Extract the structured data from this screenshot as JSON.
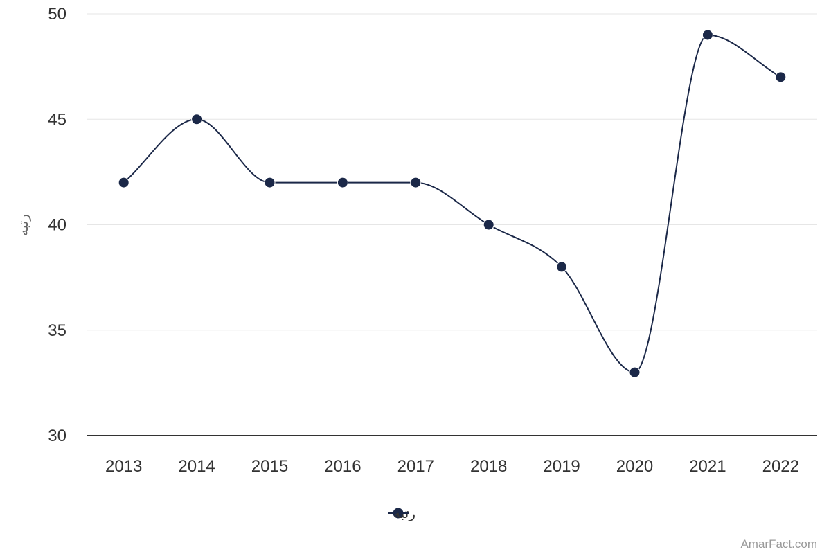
{
  "chart_data": {
    "type": "line",
    "title": "",
    "xlabel": "",
    "ylabel": "رتبه",
    "categories": [
      "2013",
      "2014",
      "2015",
      "2016",
      "2017",
      "2018",
      "2019",
      "2020",
      "2021",
      "2022"
    ],
    "series": [
      {
        "name": "رتبه",
        "values": [
          42,
          45,
          42,
          42,
          42,
          40,
          38,
          33,
          49,
          47
        ],
        "color": "#1b2848"
      }
    ],
    "ylim": [
      30,
      50
    ],
    "yticks": [
      30,
      35,
      40,
      45,
      50
    ],
    "grid": true,
    "smooth": true,
    "legend": "bottom-center"
  },
  "credits": "AmarFact.com",
  "colors": {
    "series": "#1b2848",
    "grid": "#e6e6e6",
    "axis": "#333333"
  }
}
